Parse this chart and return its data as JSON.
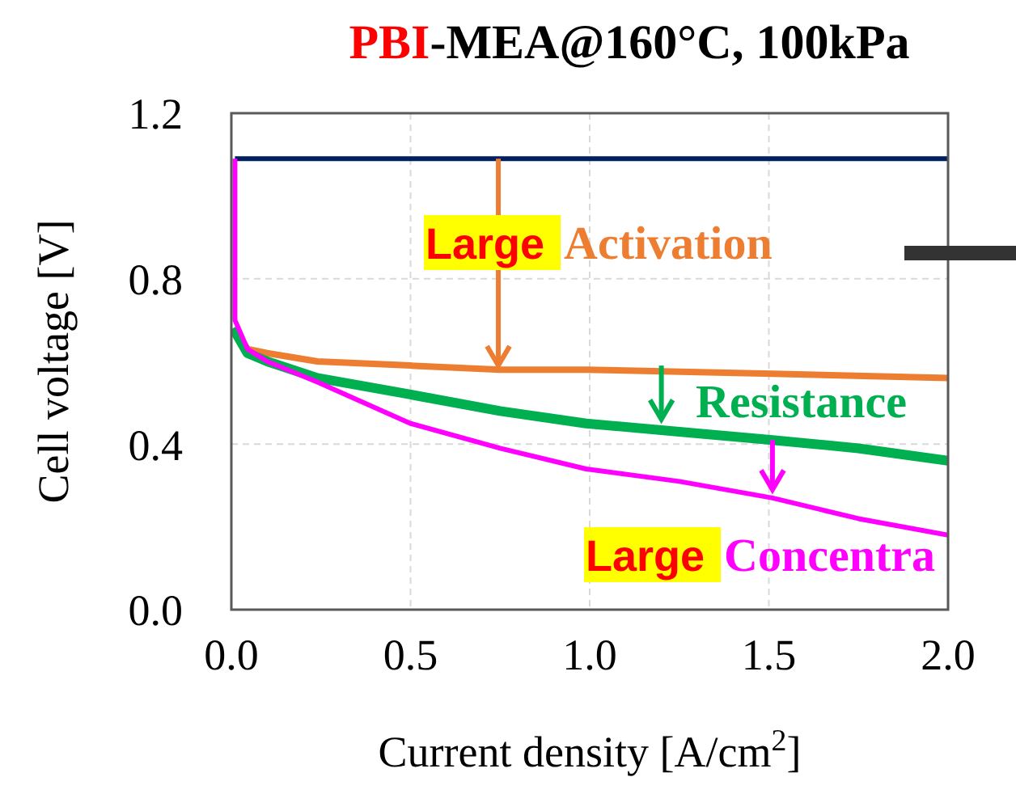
{
  "chart_data": {
    "type": "line",
    "title": "PBI-MEA@160°C, 100kPa",
    "xlabel": "Current density [A/cm$^{2}$]",
    "ylabel": "Cell voltage [V]",
    "xlim": [
      0,
      2
    ],
    "xticks": [
      {
        "value": 0,
        "label": "0.0"
      },
      {
        "value": 0.5,
        "label": "0.5"
      },
      {
        "value": 1,
        "label": "1.0"
      },
      {
        "value": 1.5,
        "label": "1.5"
      },
      {
        "value": 2,
        "label": "2.0"
      }
    ],
    "ylim": [
      0,
      1.2
    ],
    "yticks": [
      {
        "value": 0,
        "label": "0.0"
      },
      {
        "value": 0.4,
        "label": "0.4"
      },
      {
        "value": 0.8,
        "label": "0.8"
      },
      {
        "value": 1.2,
        "label": "1.2"
      }
    ],
    "grid": true,
    "marker": "none",
    "line_style": "solid",
    "series": [
      {
        "color": "#002060",
        "x": [
          0.01,
          2.0
        ],
        "values": [
          1.09,
          1.09
        ]
      },
      {
        "color": "#ed7d31",
        "x": [
          0.005,
          0.045,
          0.1,
          0.24,
          0.5,
          0.75,
          0.99,
          1.51,
          2.0
        ],
        "values": [
          0.68,
          0.63,
          0.62,
          0.6,
          0.59,
          0.58,
          0.58,
          0.57,
          0.56
        ]
      },
      {
        "color": "#00b050",
        "x": [
          0.005,
          0.045,
          0.1,
          0.24,
          0.5,
          0.75,
          0.99,
          1.25,
          1.51,
          1.75,
          2.0
        ],
        "values": [
          0.68,
          0.62,
          0.6,
          0.56,
          0.52,
          0.48,
          0.45,
          0.43,
          0.41,
          0.39,
          0.36
        ]
      },
      {
        "color": "#ff00ff",
        "x": [
          0.01,
          0.01,
          0.045,
          0.1,
          0.24,
          0.5,
          0.75,
          0.99,
          1.25,
          1.51,
          1.75,
          2.0
        ],
        "values": [
          1.09,
          0.7,
          0.63,
          0.6,
          0.55,
          0.45,
          0.39,
          0.34,
          0.31,
          0.27,
          0.22,
          0.18
        ]
      }
    ],
    "annotations": [
      "Large Activation",
      "Resistance",
      "Large Concentra"
    ]
  }
}
